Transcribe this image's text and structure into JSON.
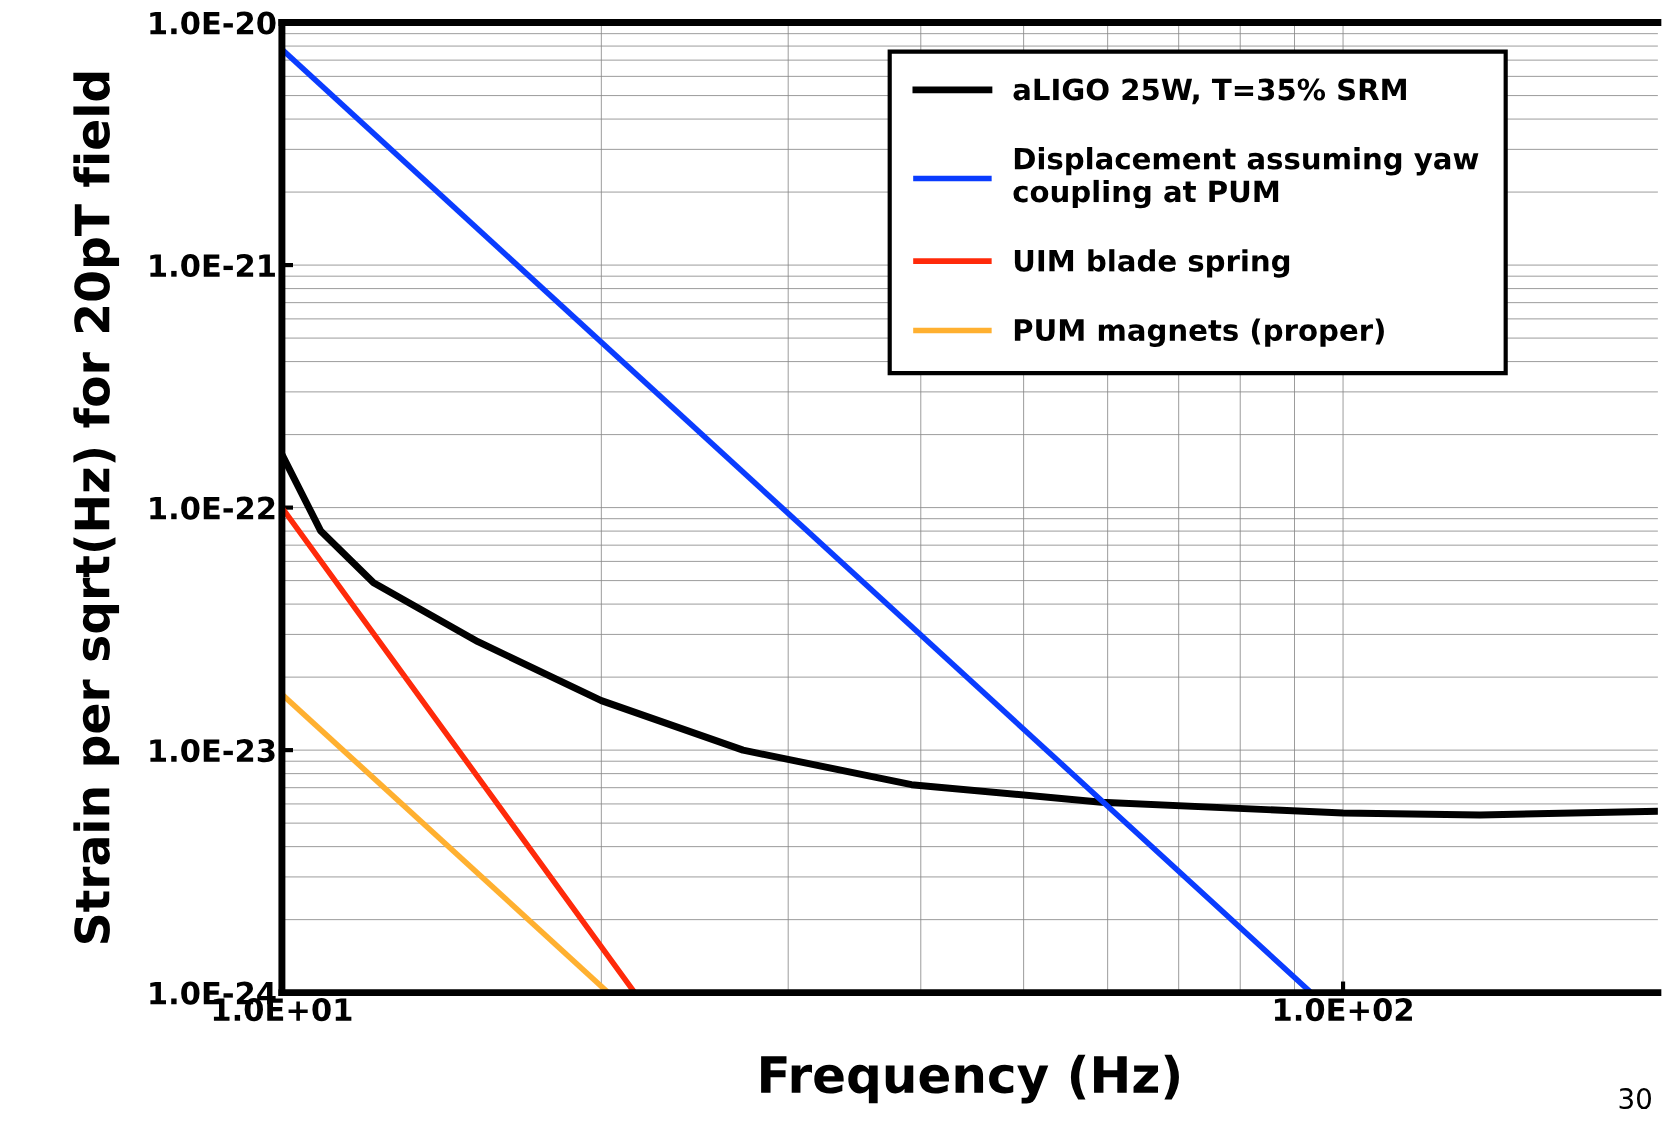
{
  "chart_data": {
    "type": "line",
    "xlabel": "Frequency (Hz)",
    "ylabel": "Strain per sqrt(Hz) for 20pT field",
    "log": "xy",
    "grid": true,
    "legend": "top right",
    "line_style": "solid",
    "marker": "none",
    "xlim": [
      10,
      198
    ],
    "ylim": [
      1e-24,
      1e-20
    ],
    "xticks": [
      {
        "value": 10,
        "label": "1.0E+01"
      },
      {
        "value": 100,
        "label": "1.0E+02"
      }
    ],
    "yticks": [
      {
        "value": 1e-24,
        "label": "1.0E-24"
      },
      {
        "value": 1e-23,
        "label": "1.0E-23"
      },
      {
        "value": 1e-22,
        "label": "1.0E-22"
      },
      {
        "value": 1e-21,
        "label": "1.0E-21"
      },
      {
        "value": 1e-20,
        "label": "1.0E-20"
      }
    ],
    "annotations": [
      "30"
    ],
    "series": [
      {
        "name": "aLIGO 25W, T=35% SRM",
        "color": "#000000",
        "x": [
          10,
          10.88,
          12.2,
          15.3,
          20,
          27.2,
          39.2,
          59.2,
          100,
          134.6,
          198
        ],
        "values": [
          1.66e-22,
          8e-23,
          4.9e-23,
          2.8e-23,
          1.6e-23,
          1e-23,
          7.2e-24,
          6.1e-24,
          5.5e-24,
          5.4e-24,
          5.6e-24
        ]
      },
      {
        "name": "Displacement assuming yaw\ncoupling at PUM",
        "color": "#0a3cff",
        "x": [
          10,
          93.3
        ],
        "values": [
          7.75e-21,
          1e-24
        ]
      },
      {
        "name": "UIM blade spring",
        "color": "#ff2a0a",
        "x": [
          10,
          21.5
        ],
        "values": [
          1e-22,
          1e-24
        ]
      },
      {
        "name": "PUM magnets (proper)",
        "color": "#ffb030",
        "x": [
          10,
          20.3
        ],
        "values": [
          1.7e-23,
          1e-24
        ]
      }
    ]
  }
}
